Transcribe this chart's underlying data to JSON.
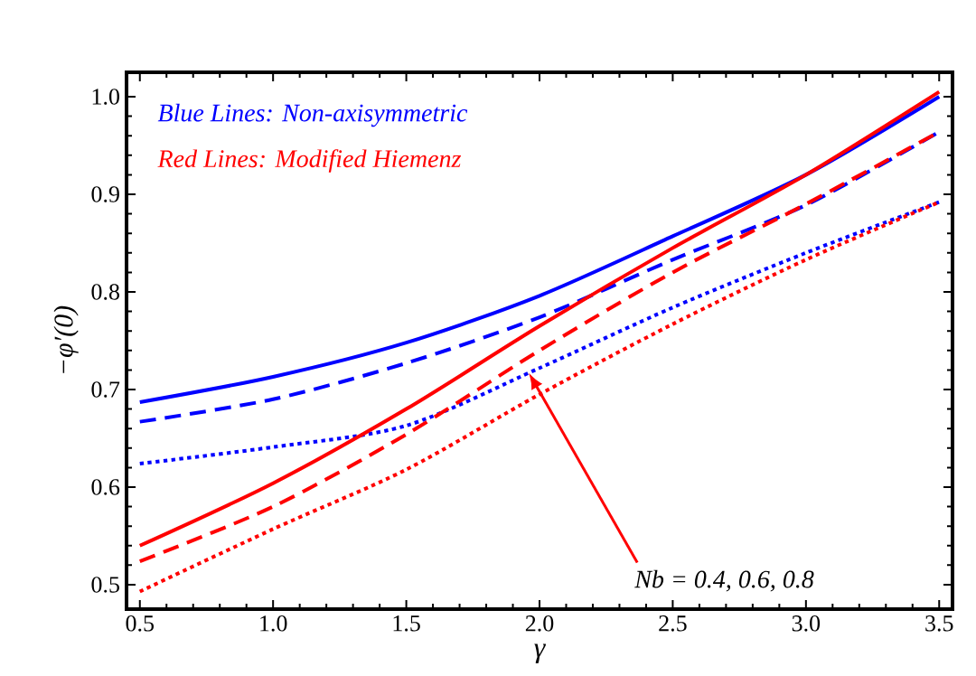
{
  "chart_data": {
    "type": "line",
    "xlabel": "γ",
    "ylabel": "−φ′(0)",
    "x": [
      0.5,
      1.0,
      1.5,
      2.0,
      2.5,
      3.0,
      3.5
    ],
    "series": [
      {
        "color": "#0000ff",
        "line_style": "solid",
        "values": [
          0.687,
          0.713,
          0.748,
          0.796,
          0.857,
          0.92,
          1.0
        ]
      },
      {
        "color": "#0000ff",
        "line_style": "dashed",
        "values": [
          0.667,
          0.69,
          0.727,
          0.774,
          0.833,
          0.889,
          0.964
        ]
      },
      {
        "color": "#0000ff",
        "line_style": "dotted",
        "values": [
          0.624,
          0.641,
          0.663,
          0.722,
          0.784,
          0.84,
          0.892
        ]
      },
      {
        "color": "#ff0000",
        "line_style": "solid",
        "values": [
          0.54,
          0.604,
          0.68,
          0.765,
          0.845,
          0.92,
          1.005
        ]
      },
      {
        "color": "#ff0000",
        "line_style": "dashed",
        "values": [
          0.524,
          0.58,
          0.654,
          0.74,
          0.82,
          0.89,
          0.964
        ]
      },
      {
        "color": "#ff0000",
        "line_style": "dotted",
        "values": [
          0.493,
          0.557,
          0.618,
          0.695,
          0.767,
          0.833,
          0.892
        ]
      }
    ],
    "annotations": [
      "Blue Lines: Non-axisymmetric",
      "Red Lines: Modified Hiemenz",
      {
        "text": "Nb = 0.4, 0.6, 0.8",
        "x": 1.96,
        "y": 0.717
      }
    ],
    "xlim": [
      0.45,
      3.55
    ],
    "ylim": [
      0.475,
      1.025
    ],
    "xticks": [
      0.5,
      {
        "value": 1,
        "label": "1.0"
      },
      1.5,
      {
        "value": 2,
        "label": "2.0"
      },
      2.5,
      {
        "value": 3,
        "label": "3.0"
      },
      3.5
    ],
    "yticks": [
      0.5,
      0.6,
      0.7,
      0.8,
      0.9,
      {
        "value": 1,
        "label": "1.0"
      }
    ],
    "grid": false,
    "marker": "none"
  }
}
